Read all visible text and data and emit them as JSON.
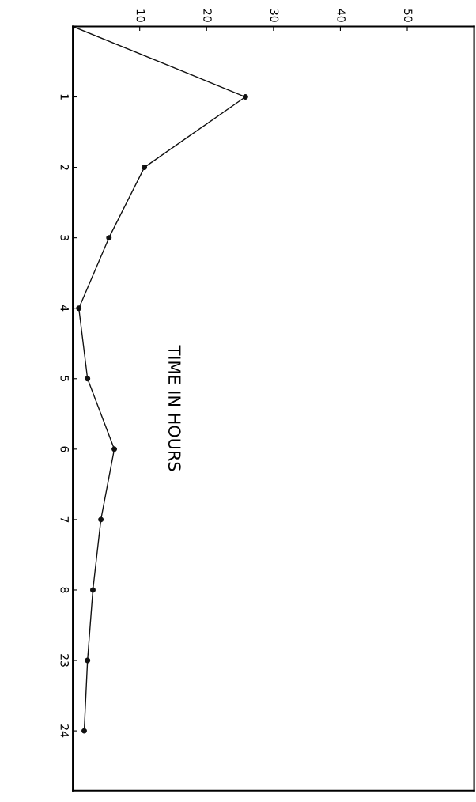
{
  "chart_data": {
    "type": "line",
    "orientation": "horizontal",
    "ylabel": "TIME IN HOURS",
    "categories": [
      null,
      "1",
      "2",
      "3",
      "4",
      "5",
      "6",
      "7",
      "8",
      "23",
      "24"
    ],
    "series": [
      {
        "color": "#111111",
        "values": [
          0,
          25.8,
          10.7,
          5.4,
          0.9,
          2.2,
          6.2,
          4.2,
          3.0,
          2.2,
          1.7
        ]
      }
    ],
    "xlim": [
      0,
      60
    ],
    "xticks": [
      10,
      20,
      30,
      40,
      50
    ],
    "marker": "circle",
    "line_style": "solid",
    "grid": false,
    "legend": false
  }
}
